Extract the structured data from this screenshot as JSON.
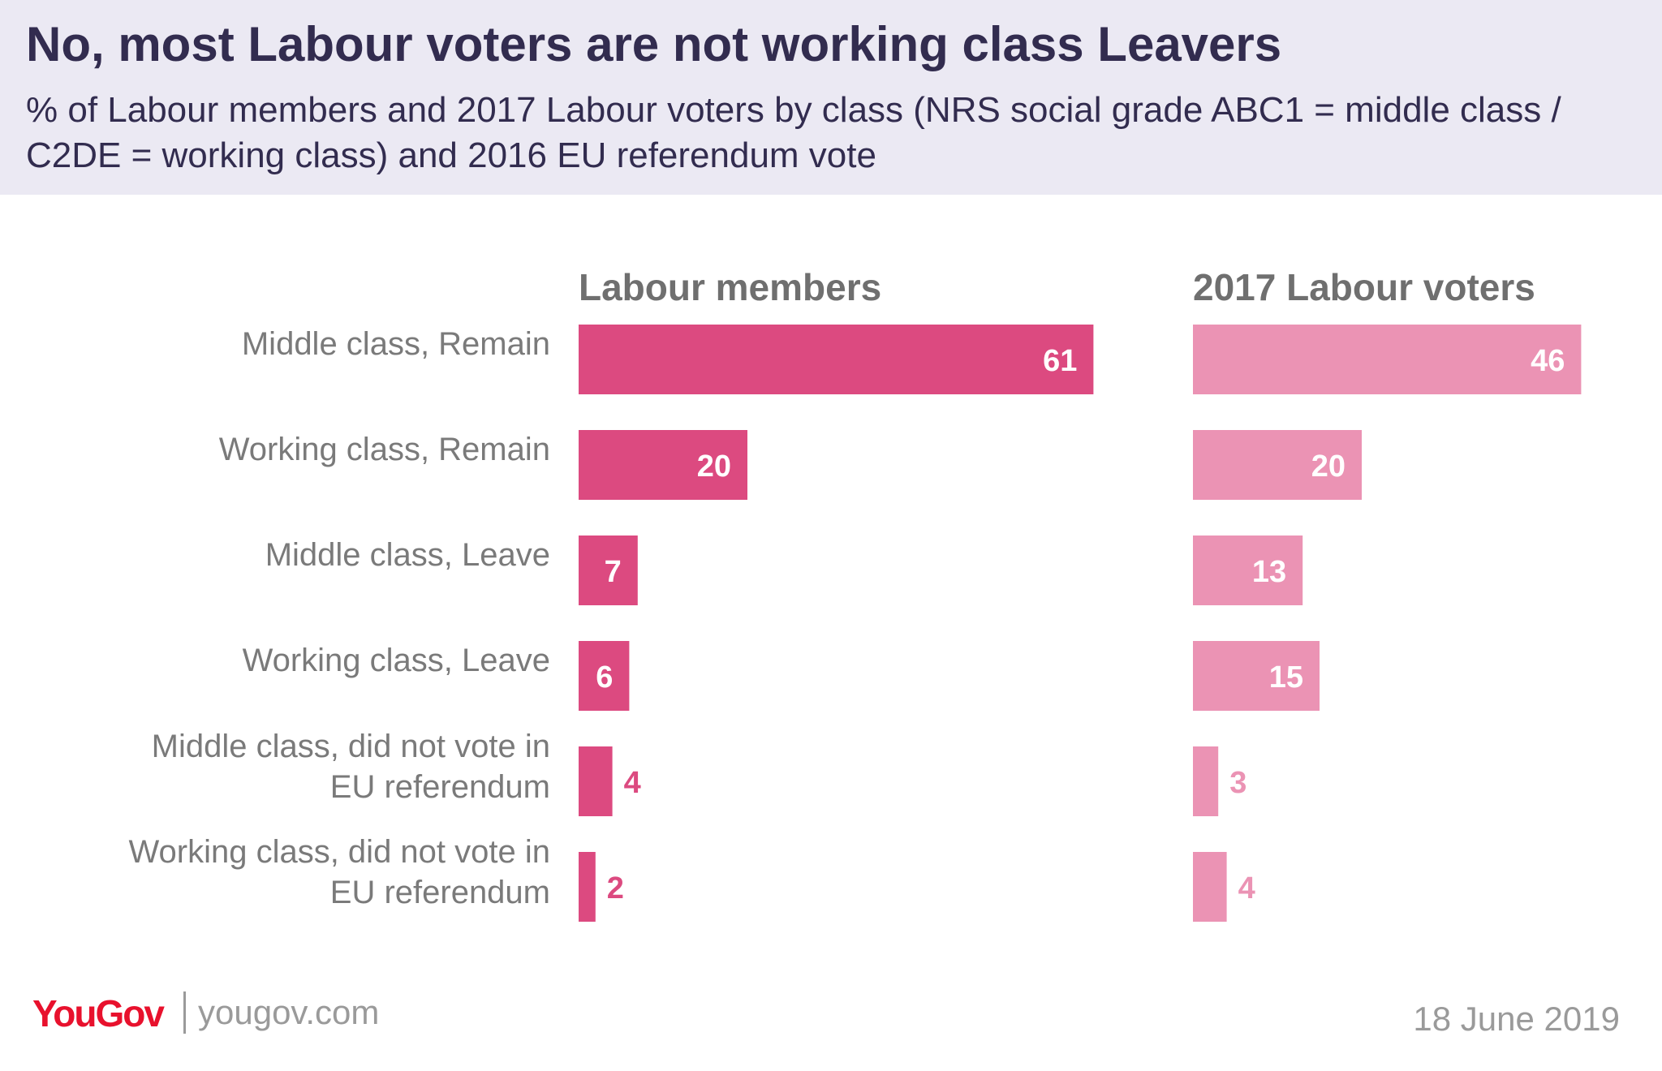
{
  "title": "No, most Labour voters are not working class Leavers",
  "subtitle": "% of Labour members and 2017 Labour voters by class (NRS social grade ABC1 = middle class / C2DE = working class) and 2016 EU referendum vote",
  "footer": {
    "logo_you": "You",
    "logo_gov": "Gov",
    "site": "yougov.com",
    "date": "18 June 2019"
  },
  "colors": {
    "members": "#dc4a80",
    "voters": "#eb93b4",
    "brand": "#e8112d"
  },
  "chart_data": {
    "type": "bar",
    "orientation": "horizontal",
    "categories": [
      [
        "Middle class, Remain"
      ],
      [
        "Working class, Remain"
      ],
      [
        "Middle class, Leave"
      ],
      [
        "Working class, Leave"
      ],
      [
        "Middle class, did not vote in",
        "EU referendum"
      ],
      [
        "Working class, did not vote in",
        "EU referendum"
      ]
    ],
    "series": [
      {
        "name": "Labour members",
        "values": [
          61,
          20,
          7,
          6,
          4,
          2
        ]
      },
      {
        "name": "2017 Labour voters",
        "values": [
          46,
          20,
          13,
          15,
          3,
          4
        ]
      }
    ]
  }
}
